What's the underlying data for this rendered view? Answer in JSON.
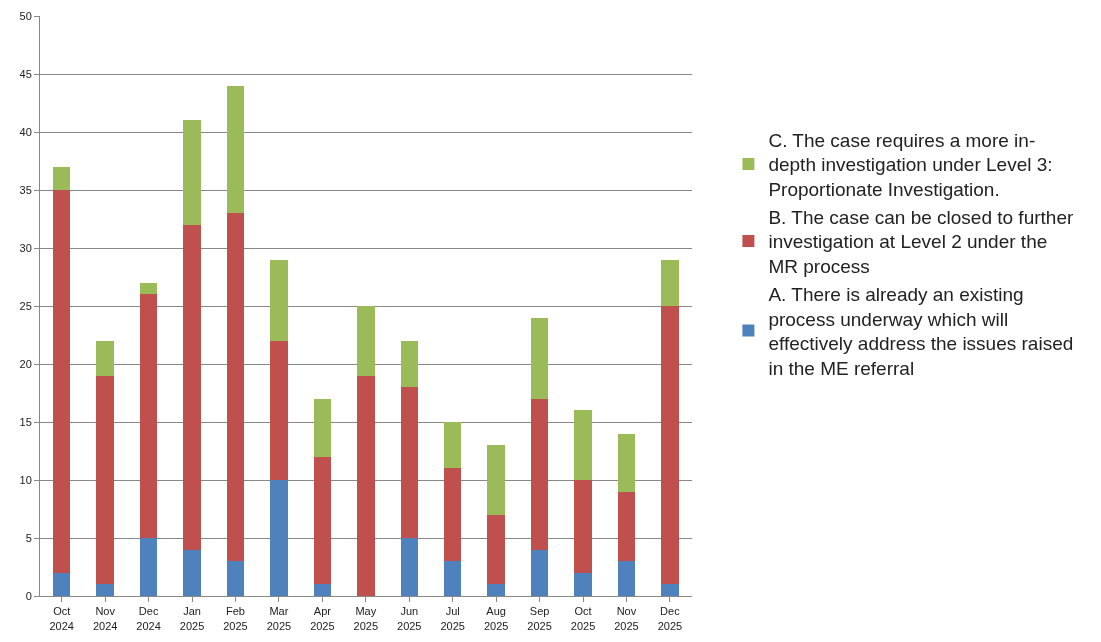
{
  "chart_data": {
    "type": "bar",
    "stacked": true,
    "categories": [
      "Oct\n2024",
      "Nov\n2024",
      "Dec\n2024",
      "Jan\n2025",
      "Feb\n2025",
      "Mar\n2025",
      "Apr\n2025",
      "May\n2025",
      "Jun\n2025",
      "Jul\n2025",
      "Aug\n2025",
      "Sep\n2025",
      "Oct\n2025",
      "Nov\n2025",
      "Dec\n2025"
    ],
    "series": [
      {
        "name": "A. There is already an existing\nprocess underway which will\neffectively address the issues raised\nin the ME referral",
        "color": "#4f81bd",
        "values": [
          2,
          1,
          5,
          4,
          3,
          10,
          1,
          0,
          5,
          3,
          1,
          4,
          2,
          3,
          1
        ]
      },
      {
        "name": "B. The case can be closed to further\ninvestigation at Level 2 under the\nMR process",
        "color": "#c0504d",
        "values": [
          33,
          18,
          21,
          28,
          30,
          12,
          11,
          19,
          13,
          8,
          6,
          13,
          8,
          6,
          24
        ]
      },
      {
        "name": "C. The case requires a more in-\ndepth investigation under Level 3:\nProportionate Investigation.",
        "color": "#9bbb59",
        "values": [
          2,
          3,
          1,
          9,
          11,
          7,
          5,
          6,
          4,
          4,
          6,
          7,
          6,
          5,
          4
        ]
      }
    ],
    "ylim": [
      0,
      50
    ],
    "yticks": [
      0,
      5,
      10,
      15,
      20,
      25,
      30,
      35,
      40,
      45,
      50
    ],
    "grid": "y",
    "legend": "right"
  }
}
